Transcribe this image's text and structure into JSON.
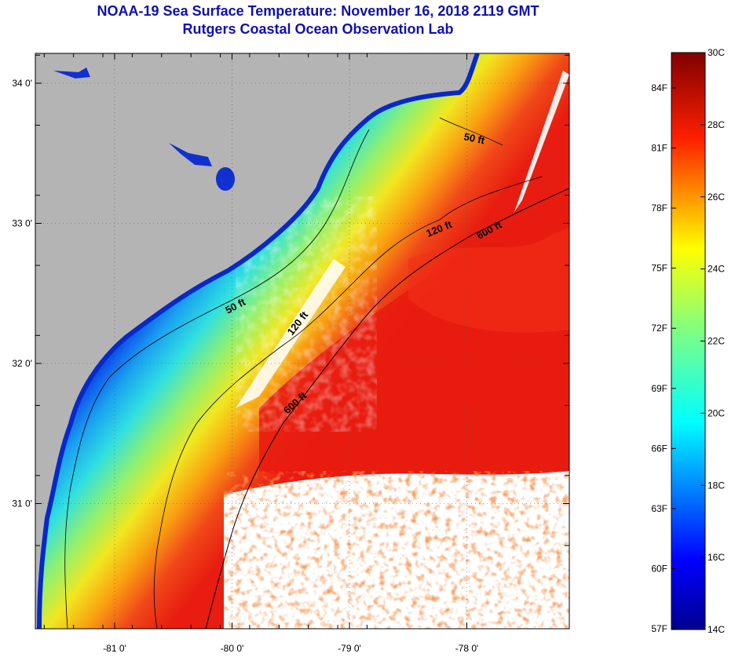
{
  "title": {
    "line1": "NOAA-19 Sea Surface Temperature:  November 16, 2018 2119 GMT",
    "line2": "Rutgers Coastal Ocean Observation Lab"
  },
  "map": {
    "lat_ticks": [
      {
        "value": 34,
        "label": "34 0'"
      },
      {
        "value": 33,
        "label": "33 0'"
      },
      {
        "value": 32,
        "label": "32 0'"
      },
      {
        "value": 31,
        "label": "31 0'"
      }
    ],
    "lon_ticks": [
      {
        "value": -81,
        "label": "-81 0'"
      },
      {
        "value": -80,
        "label": "-80 0'"
      },
      {
        "value": -79,
        "label": "-79 0'"
      },
      {
        "value": -78,
        "label": "-78 0'"
      }
    ],
    "contour_labels": [
      "50 ft",
      "120 ft",
      "600 ft",
      "50 ft",
      "120 ft",
      "600 ft"
    ],
    "colors": {
      "land": "#b4b4b4",
      "cloud": "#ffffff",
      "warm": "#e82010",
      "cool": "#1060e8"
    }
  },
  "colorbar": {
    "celsius_labels": [
      "30C",
      "28C",
      "26C",
      "24C",
      "22C",
      "20C",
      "18C",
      "16C",
      "14C"
    ],
    "fahrenheit_labels": [
      "84F",
      "81F",
      "78F",
      "75F",
      "72F",
      "69F",
      "66F",
      "63F",
      "60F",
      "57F"
    ]
  }
}
